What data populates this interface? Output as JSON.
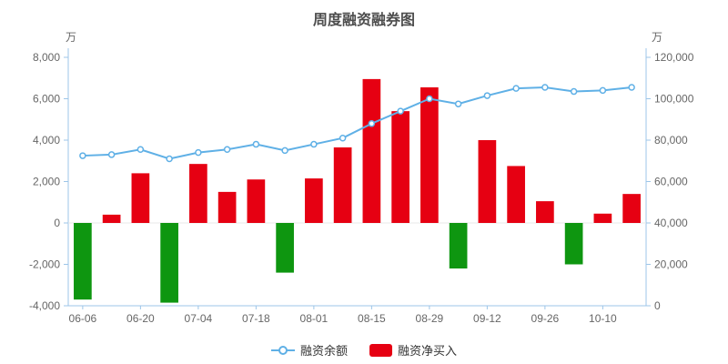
{
  "chart_data": {
    "type": "bar",
    "subtype": "bar+line combo, dual y-axis",
    "title": "周度融资融券图",
    "x_tick_labels": [
      "06-06",
      "06-20",
      "07-04",
      "07-18",
      "08-01",
      "08-15",
      "08-29",
      "09-12",
      "09-26",
      "10-10"
    ],
    "bars_per_tick": 2,
    "series_bar": {
      "name": "融资净买入",
      "type": "bar",
      "axis": "left",
      "color_positive": "#e60012",
      "color_negative": "#0e9610",
      "values": [
        -3700,
        400,
        2400,
        -3850,
        2850,
        1500,
        2100,
        -2400,
        2150,
        3650,
        6950,
        5400,
        6550,
        -2200,
        4000,
        2750,
        1050,
        -2000,
        450,
        1400
      ]
    },
    "series_line": {
      "name": "融资余额",
      "type": "line",
      "axis": "right",
      "color": "#5fb0e6",
      "marker": "hollow-circle",
      "values": [
        72500,
        73000,
        75500,
        71000,
        74000,
        75500,
        78000,
        75000,
        78000,
        81000,
        88000,
        94000,
        100000,
        97500,
        101500,
        105000,
        105500,
        103500,
        104000,
        105500
      ]
    },
    "left_axis": {
      "unit": "万",
      "min": -4000,
      "max": 8000,
      "ticks": [
        -4000,
        -2000,
        0,
        2000,
        4000,
        6000,
        8000
      ]
    },
    "right_axis": {
      "unit": "万",
      "min": 0,
      "max": 120000,
      "ticks": [
        0,
        20000,
        40000,
        60000,
        80000,
        100000,
        120000
      ]
    },
    "legend": [
      "融资余额",
      "融资净买入"
    ],
    "style": {
      "axis_color": "#9dc5e8",
      "label_color": "#666666",
      "title_color": "#4d4d4d",
      "grid_on": false,
      "legend_position": "bottom-center"
    }
  }
}
